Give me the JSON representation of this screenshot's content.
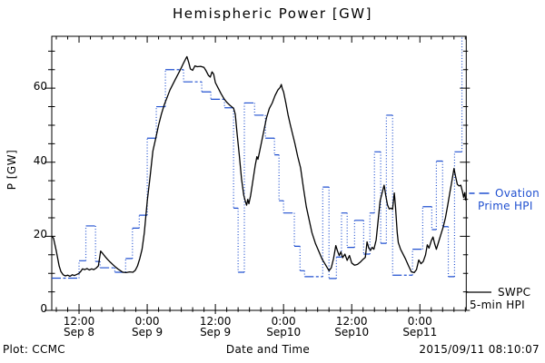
{
  "title": "Hemispheric Power [GW]",
  "footer": {
    "plot_credit": "Plot: CCMC",
    "xaxis_label": "Date and Time",
    "timestamp": "2015/09/11 08:10:07"
  },
  "legend": {
    "ovation": {
      "line1": "Ovation",
      "line2": "Prime HPI",
      "color": "#2050d0"
    },
    "swpc": {
      "line1": "SWPC",
      "line2": "5-min HPI",
      "color": "#000000"
    }
  },
  "yaxis": {
    "label": "P [GW]"
  },
  "chart_data": {
    "type": "line",
    "title": "Hemispheric Power [GW]",
    "xlabel": "Date and Time",
    "ylabel": "P [GW]",
    "x_unit": "hours since 2015-09-08 00:00",
    "xlim_hours": [
      7.2,
      80.16
    ],
    "ylim": [
      0,
      74
    ],
    "grid": false,
    "x_minor_step_hours": 2,
    "y_minor_step": 5,
    "x_major_ticks": [
      {
        "t": 12,
        "time": "12:00",
        "date": "Sep 8"
      },
      {
        "t": 24,
        "time": "0:00",
        "date": "Sep 9"
      },
      {
        "t": 36,
        "time": "12:00",
        "date": "Sep 9"
      },
      {
        "t": 48,
        "time": "0:00",
        "date": "Sep10"
      },
      {
        "t": 60,
        "time": "12:00",
        "date": "Sep10"
      },
      {
        "t": 72,
        "time": "0:00",
        "date": "Sep11"
      }
    ],
    "y_major_ticks": [
      {
        "v": 0,
        "label": "0"
      },
      {
        "v": 20,
        "label": "20"
      },
      {
        "v": 40,
        "label": "40"
      },
      {
        "v": 60,
        "label": "60"
      }
    ],
    "series": [
      {
        "name": "SWPC 5-min HPI",
        "style": "solid",
        "color": "#000000",
        "points": [
          [
            7.2,
            20
          ],
          [
            7.5,
            19.5
          ],
          [
            8,
            16
          ],
          [
            8.5,
            12
          ],
          [
            8.8,
            10.5
          ],
          [
            9.2,
            9.6
          ],
          [
            9.6,
            9.3
          ],
          [
            10,
            9.5
          ],
          [
            10.4,
            9.2
          ],
          [
            10.8,
            9.6
          ],
          [
            11.2,
            9.4
          ],
          [
            11.6,
            9.7
          ],
          [
            12,
            10
          ],
          [
            12.3,
            10.5
          ],
          [
            12.6,
            11.2
          ],
          [
            13,
            11
          ],
          [
            13.4,
            11.3
          ],
          [
            13.8,
            10.9
          ],
          [
            14.2,
            11.2
          ],
          [
            14.6,
            11
          ],
          [
            15,
            11.4
          ],
          [
            15.4,
            12
          ],
          [
            15.8,
            16
          ],
          [
            16.2,
            15.3
          ],
          [
            16.6,
            14.5
          ],
          [
            17,
            13.8
          ],
          [
            17.5,
            13
          ],
          [
            18,
            12.3
          ],
          [
            18.5,
            11.6
          ],
          [
            19,
            11
          ],
          [
            19.7,
            10.3
          ],
          [
            20.3,
            10.2
          ],
          [
            20.9,
            10.4
          ],
          [
            21.5,
            10.3
          ],
          [
            21.9,
            10.8
          ],
          [
            22.3,
            12
          ],
          [
            22.7,
            14
          ],
          [
            23.1,
            16.5
          ],
          [
            23.5,
            21
          ],
          [
            24,
            29.5
          ],
          [
            24.5,
            36
          ],
          [
            25,
            43
          ],
          [
            25.5,
            46.5
          ],
          [
            26,
            50
          ],
          [
            26.5,
            53
          ],
          [
            27,
            55.5
          ],
          [
            27.5,
            57.5
          ],
          [
            28,
            59.5
          ],
          [
            28.5,
            61
          ],
          [
            29,
            62.5
          ],
          [
            29.5,
            64
          ],
          [
            30,
            65.5
          ],
          [
            30.4,
            66.8
          ],
          [
            30.8,
            68
          ],
          [
            31,
            68.5
          ],
          [
            31.3,
            67
          ],
          [
            31.6,
            65.2
          ],
          [
            32,
            64.8
          ],
          [
            32.4,
            66
          ],
          [
            32.8,
            65.8
          ],
          [
            33.4,
            65.9
          ],
          [
            34,
            65.6
          ],
          [
            34.4,
            64.6
          ],
          [
            34.8,
            63.4
          ],
          [
            35.1,
            63
          ],
          [
            35.4,
            64.4
          ],
          [
            35.7,
            63.8
          ],
          [
            36,
            61.5
          ],
          [
            36.5,
            60
          ],
          [
            37,
            58.5
          ],
          [
            37.5,
            57.2
          ],
          [
            38,
            56.2
          ],
          [
            38.6,
            55.3
          ],
          [
            39.2,
            54.6
          ],
          [
            39.5,
            53
          ],
          [
            39.8,
            48
          ],
          [
            40.2,
            42
          ],
          [
            40.6,
            35.5
          ],
          [
            41,
            31
          ],
          [
            41.3,
            29.3
          ],
          [
            41.5,
            28.4
          ],
          [
            41.7,
            30
          ],
          [
            41.9,
            28.8
          ],
          [
            42.2,
            31
          ],
          [
            42.6,
            35
          ],
          [
            43,
            39
          ],
          [
            43.3,
            41.5
          ],
          [
            43.5,
            40.8
          ],
          [
            43.8,
            43
          ],
          [
            44.2,
            46
          ],
          [
            44.6,
            49
          ],
          [
            45,
            52
          ],
          [
            45.5,
            54.5
          ],
          [
            46,
            56
          ],
          [
            46.5,
            58
          ],
          [
            47,
            59.5
          ],
          [
            47.4,
            60.2
          ],
          [
            47.6,
            61
          ],
          [
            47.8,
            59.8
          ],
          [
            48,
            59
          ],
          [
            48.4,
            56
          ],
          [
            48.8,
            52.7
          ],
          [
            49.2,
            50
          ],
          [
            49.6,
            47.5
          ],
          [
            50,
            45
          ],
          [
            50.5,
            41.5
          ],
          [
            51,
            38.5
          ],
          [
            51.5,
            33
          ],
          [
            52,
            28
          ],
          [
            52.5,
            24.5
          ],
          [
            53,
            21
          ],
          [
            53.6,
            18.1
          ],
          [
            54.2,
            16
          ],
          [
            54.8,
            13.8
          ],
          [
            55.4,
            12.3
          ],
          [
            56,
            10.7
          ],
          [
            56.4,
            11.5
          ],
          [
            56.8,
            14
          ],
          [
            57.2,
            17.5
          ],
          [
            57.5,
            16
          ],
          [
            57.8,
            14.8
          ],
          [
            58.1,
            15.8
          ],
          [
            58.4,
            14.2
          ],
          [
            58.8,
            15.2
          ],
          [
            59.2,
            13.5
          ],
          [
            59.6,
            14.8
          ],
          [
            60,
            12.8
          ],
          [
            60.5,
            12.2
          ],
          [
            61,
            12.4
          ],
          [
            61.5,
            13
          ],
          [
            62,
            13.8
          ],
          [
            62.4,
            14.3
          ],
          [
            62.7,
            18.5
          ],
          [
            63,
            16.8
          ],
          [
            63.3,
            16.2
          ],
          [
            63.6,
            17
          ],
          [
            63.9,
            16.5
          ],
          [
            64.3,
            19
          ],
          [
            64.7,
            25
          ],
          [
            65,
            29.6
          ],
          [
            65.4,
            32
          ],
          [
            65.7,
            33.8
          ],
          [
            66,
            31
          ],
          [
            66.3,
            28.5
          ],
          [
            66.6,
            27.4
          ],
          [
            66.9,
            27.6
          ],
          [
            67.2,
            27.3
          ],
          [
            67.5,
            31.7
          ],
          [
            67.7,
            28
          ],
          [
            68,
            21
          ],
          [
            68.2,
            18.3
          ],
          [
            68.6,
            16.5
          ],
          [
            69,
            15.3
          ],
          [
            69.5,
            13.8
          ],
          [
            70,
            12
          ],
          [
            70.5,
            10.4
          ],
          [
            71,
            10.2
          ],
          [
            71.4,
            11
          ],
          [
            71.8,
            13.6
          ],
          [
            72.2,
            12.6
          ],
          [
            72.6,
            13.2
          ],
          [
            73,
            15
          ],
          [
            73.3,
            17.7
          ],
          [
            73.6,
            16.8
          ],
          [
            74,
            18.8
          ],
          [
            74.3,
            19.8
          ],
          [
            74.6,
            18
          ],
          [
            74.9,
            16.5
          ],
          [
            75.3,
            18.5
          ],
          [
            75.7,
            20.5
          ],
          [
            76.1,
            22.5
          ],
          [
            76.5,
            25
          ],
          [
            76.9,
            28.4
          ],
          [
            77.3,
            32
          ],
          [
            77.7,
            35.5
          ],
          [
            78,
            38.3
          ],
          [
            78.3,
            36
          ],
          [
            78.6,
            34
          ],
          [
            78.9,
            33.6
          ],
          [
            79.2,
            33.8
          ],
          [
            79.5,
            32
          ],
          [
            79.7,
            30.5
          ],
          [
            79.9,
            31.8
          ],
          [
            80.05,
            29.8
          ],
          [
            80.16,
            30.6
          ]
        ]
      },
      {
        "name": "Ovation Prime HPI",
        "style": "stepped-dashed",
        "color": "#2050d0",
        "steps": [
          [
            7.2,
            8.7
          ],
          [
            12,
            13.4
          ],
          [
            13.2,
            22.8
          ],
          [
            14.9,
            13.2
          ],
          [
            15.7,
            11.5
          ],
          [
            18.3,
            10.3
          ],
          [
            20.2,
            14
          ],
          [
            21.4,
            22.2
          ],
          [
            22.6,
            25.7
          ],
          [
            24,
            46.5
          ],
          [
            25.6,
            55
          ],
          [
            27.2,
            65
          ],
          [
            30.4,
            61.7
          ],
          [
            33.6,
            59
          ],
          [
            35.2,
            57
          ],
          [
            37.6,
            54.7
          ],
          [
            39.2,
            27.6
          ],
          [
            40,
            10.3
          ],
          [
            41.1,
            56
          ],
          [
            42.9,
            52.7
          ],
          [
            44.8,
            46.5
          ],
          [
            46.4,
            42
          ],
          [
            47.2,
            29.6
          ],
          [
            48,
            26.3
          ],
          [
            49.9,
            17.3
          ],
          [
            50.9,
            10.7
          ],
          [
            51.7,
            9.1
          ],
          [
            54.9,
            33.3
          ],
          [
            56,
            8.6
          ],
          [
            57.3,
            14.4
          ],
          [
            58.2,
            26.3
          ],
          [
            59.2,
            17
          ],
          [
            60.5,
            24.3
          ],
          [
            62.1,
            15.2
          ],
          [
            63.2,
            26.3
          ],
          [
            64,
            42.8
          ],
          [
            65.1,
            18.1
          ],
          [
            66.1,
            52.7
          ],
          [
            67.2,
            9.5
          ],
          [
            70.7,
            16.5
          ],
          [
            72.5,
            28
          ],
          [
            74.1,
            21.8
          ],
          [
            74.9,
            40.3
          ],
          [
            76,
            22.6
          ],
          [
            77,
            9.1
          ],
          [
            78.1,
            42.8
          ],
          [
            79.4,
            78
          ],
          [
            80.16,
            78
          ]
        ]
      }
    ]
  }
}
